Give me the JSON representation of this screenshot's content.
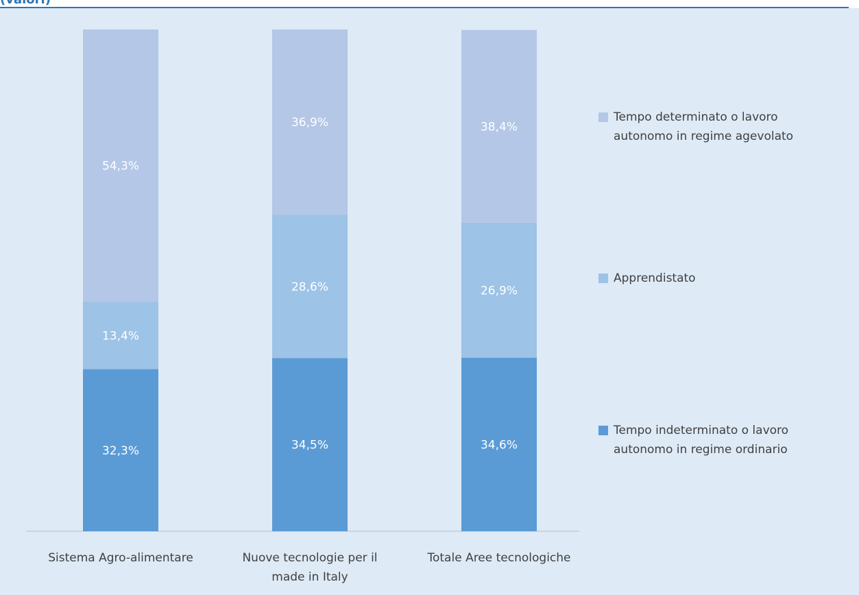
{
  "chart_data": {
    "type": "stacked_bar",
    "title": "(valori)",
    "categories": [
      "Sistema Agro-alimentare",
      "Nuove tecnologie per il made in Italy",
      "Totale Aree tecnologiche"
    ],
    "series": [
      {
        "name": "Tempo indeterminato o lavoro autonomo in regime ordinario",
        "color": "#5b9bd5",
        "values": [
          32.3,
          34.5,
          34.6
        ],
        "value_labels": [
          "32,3%",
          "34,5%",
          "34,6%"
        ]
      },
      {
        "name": "Apprendistato",
        "color": "#9dc3e6",
        "values": [
          13.4,
          28.6,
          26.9
        ],
        "value_labels": [
          "13,4%",
          "28,6%",
          "26,9%"
        ]
      },
      {
        "name": "Tempo determinato o lavoro autonomo in regime agevolato",
        "color": "#b4c7e7",
        "values": [
          54.3,
          36.9,
          38.4
        ],
        "value_labels": [
          "54,3%",
          "36,9%",
          "38,4%"
        ]
      }
    ],
    "ylim": [
      0,
      100
    ]
  }
}
